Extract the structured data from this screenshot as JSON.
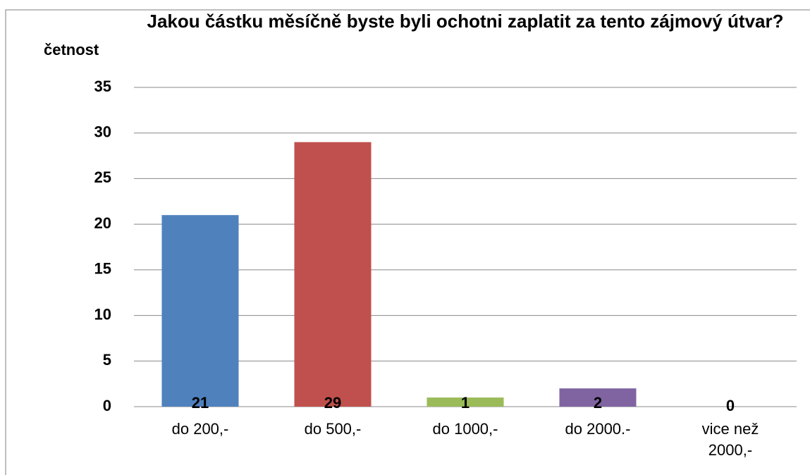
{
  "chart_data": {
    "type": "bar",
    "title": "Jakou částku měsíčně byste byli ochotni zaplatit za tento zájmový útvar?",
    "y_label": "četnost",
    "categories": [
      "do 200,-",
      "do 500,-",
      "do 1000,-",
      "do 2000.-",
      "vice než 2000,-"
    ],
    "values": [
      21,
      29,
      1,
      2,
      0
    ],
    "colors": [
      "#4f81bd",
      "#c0504d",
      "#9bbb59",
      "#8064a2",
      "#4bacc6"
    ],
    "ylim": [
      0,
      35
    ],
    "yticks": [
      0,
      5,
      10,
      15,
      20,
      25,
      30,
      35
    ],
    "grid": true
  }
}
